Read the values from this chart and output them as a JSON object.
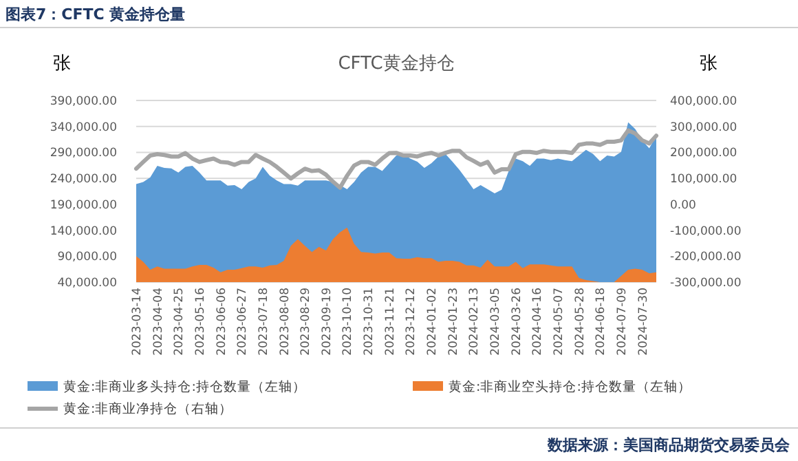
{
  "chart_data": {
    "type": "area",
    "title": "图表7：CFTC 黄金持仓量",
    "subtitle": "CFTC黄金持仓",
    "ylabel": "张",
    "y2label": "张",
    "categories": [
      "2023-03-14",
      null,
      null,
      "2023-04-04",
      null,
      null,
      "2023-04-25",
      null,
      null,
      "2023-05-16",
      null,
      null,
      "2023-06-06",
      null,
      null,
      "2023-06-27",
      null,
      null,
      "2023-07-18",
      null,
      null,
      "2023-08-08",
      null,
      null,
      "2023-08-29",
      null,
      null,
      "2023-09-19",
      null,
      null,
      "2023-10-10",
      null,
      null,
      "2023-10-31",
      null,
      null,
      "2023-11-21",
      null,
      null,
      "2023-12-12",
      null,
      null,
      "2024-01-02",
      null,
      null,
      "2024-01-23",
      null,
      null,
      "2024-02-13",
      null,
      null,
      "2024-03-05",
      null,
      null,
      "2024-03-26",
      null,
      null,
      "2024-04-16",
      null,
      null,
      "2024-05-07",
      null,
      null,
      "2024-05-28",
      null,
      null,
      "2024-06-18",
      null,
      null,
      "2024-07-09",
      null,
      null,
      "2024-07-30",
      null,
      null
    ],
    "series": [
      {
        "name": "黄金:非商业多头持仓:持仓数量（左轴）",
        "type": "area",
        "axis": "y",
        "color": "#5b9bd5",
        "values": [
          229000,
          233000,
          242000,
          264000,
          260000,
          259000,
          251000,
          262000,
          264000,
          251000,
          236000,
          236000,
          236000,
          226000,
          227000,
          219000,
          233000,
          240000,
          262000,
          245000,
          236000,
          229000,
          229000,
          226000,
          236000,
          236000,
          236000,
          236000,
          233000,
          227000,
          219000,
          233000,
          251000,
          262000,
          262000,
          254000,
          269000,
          284000,
          287000,
          278000,
          272000,
          260000,
          269000,
          282000,
          287000,
          272000,
          256000,
          238000,
          219000,
          227000,
          219000,
          211000,
          218000,
          254000,
          278000,
          273000,
          264000,
          278000,
          278000,
          275000,
          278000,
          275000,
          273000,
          284000,
          295000,
          287000,
          273000,
          284000,
          282000,
          291000,
          348000,
          335000,
          313000,
          298000,
          322000
        ]
      },
      {
        "name": "黄金:非商业空头持仓:持仓数量（左轴）",
        "type": "area",
        "axis": "y",
        "color": "#ed7d31",
        "values": [
          90000,
          79000,
          64000,
          70000,
          66000,
          66000,
          66000,
          66000,
          70000,
          73000,
          73000,
          68000,
          59000,
          64000,
          64000,
          67000,
          70000,
          70000,
          68000,
          72000,
          73000,
          81000,
          110000,
          123000,
          110000,
          98000,
          108000,
          101000,
          123000,
          136000,
          145000,
          114000,
          98000,
          97000,
          95000,
          97000,
          97000,
          86000,
          85000,
          85000,
          88000,
          86000,
          86000,
          79000,
          81000,
          81000,
          79000,
          72000,
          72000,
          68000,
          83000,
          70000,
          70000,
          70000,
          79000,
          67000,
          74000,
          74000,
          74000,
          72000,
          70000,
          70000,
          70000,
          48000,
          44000,
          42000,
          40000,
          40000,
          40000,
          52000,
          64000,
          66000,
          64000,
          57000,
          59000
        ]
      },
      {
        "name": "黄金:非商业净持仓（右轴）",
        "type": "line",
        "axis": "y2",
        "color": "#a5a5a5",
        "values": [
          137000,
          163000,
          188000,
          193000,
          190000,
          184000,
          184000,
          197000,
          176000,
          163000,
          170000,
          176000,
          163000,
          161000,
          152000,
          163000,
          163000,
          190000,
          176000,
          163000,
          144000,
          122000,
          99000,
          119000,
          137000,
          128000,
          131000,
          114000,
          87000,
          64000,
          110000,
          149000,
          163000,
          163000,
          152000,
          176000,
          197000,
          198000,
          188000,
          188000,
          184000,
          193000,
          198000,
          188000,
          198000,
          206000,
          206000,
          181000,
          167000,
          152000,
          163000,
          122000,
          135000,
          135000,
          193000,
          202000,
          202000,
          198000,
          206000,
          202000,
          202000,
          202000,
          198000,
          229000,
          234000,
          234000,
          229000,
          241000,
          241000,
          246000,
          285000,
          273000,
          246000,
          234000,
          264000
        ]
      }
    ],
    "ylim": [
      40000,
      390000
    ],
    "yticks": [
      {
        "value": 40000,
        "label": "40,000.00"
      },
      {
        "value": 90000,
        "label": "90,000.00"
      },
      {
        "value": 140000,
        "label": "140,000.00"
      },
      {
        "value": 190000,
        "label": "190,000.00"
      },
      {
        "value": 240000,
        "label": "240,000.00"
      },
      {
        "value": 290000,
        "label": "290,000.00"
      },
      {
        "value": 340000,
        "label": "340,000.00"
      },
      {
        "value": 390000,
        "label": "390,000.00"
      }
    ],
    "y2lim": [
      -300000,
      400000
    ],
    "y2ticks": [
      {
        "value": -300000,
        "label": "-300,000.00"
      },
      {
        "value": -200000,
        "label": "-200,000.00"
      },
      {
        "value": -100000,
        "label": "-100,000.00"
      },
      {
        "value": 0,
        "label": "0.00"
      },
      {
        "value": 100000,
        "label": "100,000.00"
      },
      {
        "value": 200000,
        "label": "200,000.00"
      },
      {
        "value": 300000,
        "label": "300,000.00"
      },
      {
        "value": 400000,
        "label": "400,000.00"
      }
    ],
    "grid": "y",
    "legend": "bottom",
    "line_style": "solid",
    "marker": "none",
    "annotations": [
      "数据来源：美国商品期货交易委员会"
    ]
  }
}
